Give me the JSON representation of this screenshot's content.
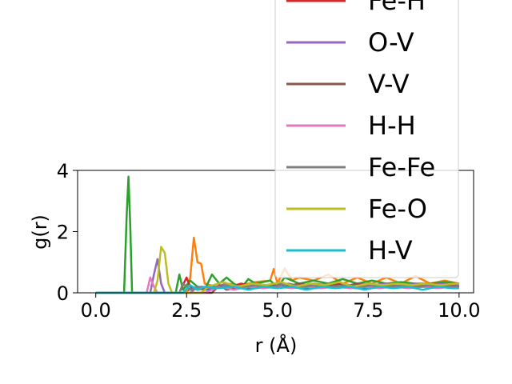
{
  "chart_data": {
    "type": "line",
    "title": "",
    "xlabel": "r (Å)",
    "ylabel": "g(r)",
    "xlim": [
      -0.5,
      10.4
    ],
    "ylim": [
      0,
      4
    ],
    "xticks": [
      "0.0",
      "2.5",
      "5.0",
      "7.5",
      "10.0"
    ],
    "xtick_values": [
      0,
      2.5,
      5,
      7.5,
      10
    ],
    "yticks": [
      "0",
      "2",
      "4"
    ],
    "ytick_values": [
      0,
      2,
      4
    ],
    "grid": false,
    "legend_position": "upper-right",
    "legend_visible": [
      "Fe-H",
      "O-V",
      "V-V",
      "H-H",
      "Fe-Fe",
      "Fe-O",
      "H-V"
    ],
    "series": [
      {
        "name": "",
        "color": "#1f77b4",
        "points": [
          [
            0,
            0
          ],
          [
            2.4,
            0
          ],
          [
            2.7,
            0.18
          ],
          [
            3.0,
            0.1
          ],
          [
            3.6,
            0.2
          ],
          [
            4.2,
            0.15
          ],
          [
            4.8,
            0.18
          ],
          [
            5.4,
            0.2
          ],
          [
            6.0,
            0.15
          ],
          [
            6.6,
            0.2
          ],
          [
            7.2,
            0.15
          ],
          [
            7.8,
            0.2
          ],
          [
            8.4,
            0.18
          ],
          [
            9.0,
            0.2
          ],
          [
            9.6,
            0.18
          ],
          [
            10,
            0.2
          ]
        ]
      },
      {
        "name": "",
        "color": "#ff7f0e",
        "points": [
          [
            0,
            0
          ],
          [
            2.5,
            0
          ],
          [
            2.6,
            0.5
          ],
          [
            2.7,
            1.8
          ],
          [
            2.8,
            1.0
          ],
          [
            2.9,
            0.95
          ],
          [
            3.0,
            0.3
          ],
          [
            3.3,
            0.2
          ],
          [
            3.6,
            0.3
          ],
          [
            4.0,
            0.25
          ],
          [
            4.4,
            0.35
          ],
          [
            4.8,
            0.4
          ],
          [
            4.9,
            0.78
          ],
          [
            5.0,
            0.3
          ],
          [
            5.2,
            0.8
          ],
          [
            5.4,
            0.4
          ],
          [
            5.6,
            0.5
          ],
          [
            6.0,
            0.4
          ],
          [
            6.4,
            0.6
          ],
          [
            6.8,
            0.3
          ],
          [
            7.2,
            0.5
          ],
          [
            7.6,
            0.3
          ],
          [
            8.0,
            0.5
          ],
          [
            8.4,
            0.3
          ],
          [
            8.8,
            0.55
          ],
          [
            9.2,
            0.3
          ],
          [
            9.6,
            0.4
          ],
          [
            10,
            0.3
          ]
        ]
      },
      {
        "name": "",
        "color": "#2ca02c",
        "points": [
          [
            0,
            0
          ],
          [
            0.78,
            0
          ],
          [
            0.85,
            2.5
          ],
          [
            0.9,
            3.8
          ],
          [
            0.95,
            2.2
          ],
          [
            1.0,
            0
          ],
          [
            2.2,
            0
          ],
          [
            2.3,
            0.6
          ],
          [
            2.4,
            0.1
          ],
          [
            2.6,
            0.4
          ],
          [
            2.8,
            0.2
          ],
          [
            3.0,
            0.1
          ],
          [
            3.2,
            0.6
          ],
          [
            3.4,
            0.3
          ],
          [
            3.6,
            0.5
          ],
          [
            3.8,
            0.3
          ],
          [
            4.0,
            0.15
          ],
          [
            4.2,
            0.45
          ],
          [
            4.4,
            0.3
          ],
          [
            4.8,
            0.4
          ],
          [
            5.0,
            0.2
          ],
          [
            5.2,
            0.5
          ],
          [
            5.6,
            0.3
          ],
          [
            6.0,
            0.4
          ],
          [
            6.4,
            0.3
          ],
          [
            6.8,
            0.45
          ],
          [
            7.2,
            0.3
          ],
          [
            7.6,
            0.4
          ],
          [
            8.0,
            0.3
          ],
          [
            8.4,
            0.35
          ],
          [
            8.8,
            0.3
          ],
          [
            9.2,
            0.3
          ],
          [
            9.6,
            0.35
          ],
          [
            10,
            0.3
          ]
        ]
      },
      {
        "name": "Fe-H",
        "color": "#d62728",
        "points": [
          [
            0,
            0
          ],
          [
            2.3,
            0
          ],
          [
            2.5,
            0.5
          ],
          [
            2.6,
            0.2
          ],
          [
            2.8,
            0.1
          ],
          [
            3.2,
            0.2
          ],
          [
            3.6,
            0.15
          ],
          [
            4.0,
            0.3
          ],
          [
            4.4,
            0.2
          ],
          [
            4.8,
            0.25
          ],
          [
            5.2,
            0.2
          ],
          [
            5.6,
            0.3
          ],
          [
            6.0,
            0.2
          ],
          [
            6.4,
            0.25
          ],
          [
            6.8,
            0.3
          ],
          [
            7.2,
            0.2
          ],
          [
            7.6,
            0.25
          ],
          [
            8.0,
            0.3
          ],
          [
            8.4,
            0.2
          ],
          [
            8.8,
            0.25
          ],
          [
            9.2,
            0.3
          ],
          [
            9.6,
            0.25
          ],
          [
            10,
            0.25
          ]
        ]
      },
      {
        "name": "O-V",
        "color": "#9467bd",
        "points": [
          [
            0,
            0
          ],
          [
            1.5,
            0
          ],
          [
            1.6,
            0.6
          ],
          [
            1.7,
            1.1
          ],
          [
            1.8,
            0.3
          ],
          [
            1.9,
            0
          ],
          [
            2.6,
            0
          ],
          [
            2.8,
            0.2
          ],
          [
            3.2,
            0.15
          ],
          [
            3.6,
            0.3
          ],
          [
            4.0,
            0.2
          ],
          [
            4.4,
            0.25
          ],
          [
            4.8,
            0.2
          ],
          [
            5.2,
            0.3
          ],
          [
            5.6,
            0.2
          ],
          [
            6.0,
            0.3
          ],
          [
            6.4,
            0.25
          ],
          [
            6.8,
            0.2
          ],
          [
            7.2,
            0.3
          ],
          [
            7.6,
            0.25
          ],
          [
            8.0,
            0.3
          ],
          [
            8.4,
            0.2
          ],
          [
            8.8,
            0.3
          ],
          [
            9.2,
            0.25
          ],
          [
            9.6,
            0.3
          ],
          [
            10,
            0.25
          ]
        ]
      },
      {
        "name": "V-V",
        "color": "#8c564b",
        "points": [
          [
            0,
            0
          ],
          [
            3.2,
            0
          ],
          [
            3.4,
            0.25
          ],
          [
            3.6,
            0.1
          ],
          [
            4.0,
            0.2
          ],
          [
            4.4,
            0.15
          ],
          [
            4.8,
            0.25
          ],
          [
            5.2,
            0.2
          ],
          [
            5.6,
            0.3
          ],
          [
            6.0,
            0.2
          ],
          [
            6.4,
            0.25
          ],
          [
            6.8,
            0.2
          ],
          [
            7.2,
            0.3
          ],
          [
            7.6,
            0.2
          ],
          [
            8.0,
            0.25
          ],
          [
            8.4,
            0.2
          ],
          [
            8.8,
            0.25
          ],
          [
            9.2,
            0.2
          ],
          [
            9.6,
            0.25
          ],
          [
            10,
            0.2
          ]
        ]
      },
      {
        "name": "H-H",
        "color": "#e377c2",
        "points": [
          [
            0,
            0
          ],
          [
            1.4,
            0
          ],
          [
            1.5,
            0.5
          ],
          [
            1.6,
            0.2
          ],
          [
            1.7,
            0
          ],
          [
            3.0,
            0
          ],
          [
            3.4,
            0.2
          ],
          [
            3.8,
            0.1
          ],
          [
            4.2,
            0.2
          ],
          [
            4.6,
            0.15
          ],
          [
            5.0,
            0.2
          ],
          [
            5.4,
            0.15
          ],
          [
            5.8,
            0.2
          ],
          [
            6.2,
            0.15
          ],
          [
            6.6,
            0.2
          ],
          [
            7.0,
            0.15
          ],
          [
            7.4,
            0.2
          ],
          [
            7.8,
            0.15
          ],
          [
            8.2,
            0.2
          ],
          [
            8.6,
            0.15
          ],
          [
            9.0,
            0.2
          ],
          [
            9.4,
            0.15
          ],
          [
            9.8,
            0.2
          ],
          [
            10,
            0.15
          ]
        ]
      },
      {
        "name": "Fe-Fe",
        "color": "#7f7f7f",
        "points": [
          [
            0,
            0
          ],
          [
            2.3,
            0
          ],
          [
            2.4,
            0.3
          ],
          [
            2.6,
            0.1
          ],
          [
            2.9,
            0.2
          ],
          [
            3.3,
            0.15
          ],
          [
            3.7,
            0.25
          ],
          [
            4.1,
            0.2
          ],
          [
            4.5,
            0.25
          ],
          [
            4.9,
            0.2
          ],
          [
            5.3,
            0.3
          ],
          [
            5.7,
            0.2
          ],
          [
            6.1,
            0.25
          ],
          [
            6.5,
            0.2
          ],
          [
            6.9,
            0.25
          ],
          [
            7.3,
            0.2
          ],
          [
            7.7,
            0.25
          ],
          [
            8.1,
            0.2
          ],
          [
            8.5,
            0.25
          ],
          [
            8.9,
            0.2
          ],
          [
            9.3,
            0.25
          ],
          [
            9.7,
            0.2
          ],
          [
            10,
            0.2
          ]
        ]
      },
      {
        "name": "Fe-O",
        "color": "#bcbd22",
        "points": [
          [
            0,
            0
          ],
          [
            1.6,
            0
          ],
          [
            1.7,
            0.4
          ],
          [
            1.8,
            1.5
          ],
          [
            1.9,
            1.3
          ],
          [
            2.0,
            0.3
          ],
          [
            2.1,
            0
          ],
          [
            2.9,
            0
          ],
          [
            3.1,
            0.2
          ],
          [
            3.5,
            0.35
          ],
          [
            3.9,
            0.2
          ],
          [
            4.3,
            0.3
          ],
          [
            4.7,
            0.25
          ],
          [
            5.1,
            0.35
          ],
          [
            5.5,
            0.2
          ],
          [
            5.9,
            0.3
          ],
          [
            6.3,
            0.25
          ],
          [
            6.7,
            0.35
          ],
          [
            7.1,
            0.2
          ],
          [
            7.5,
            0.3
          ],
          [
            7.9,
            0.25
          ],
          [
            8.3,
            0.3
          ],
          [
            8.7,
            0.25
          ],
          [
            9.1,
            0.3
          ],
          [
            9.5,
            0.25
          ],
          [
            9.9,
            0.3
          ],
          [
            10,
            0.3
          ]
        ]
      },
      {
        "name": "H-V",
        "color": "#17becf",
        "points": [
          [
            0,
            0
          ],
          [
            2.4,
            0
          ],
          [
            2.6,
            0.25
          ],
          [
            2.8,
            0.1
          ],
          [
            3.0,
            0.2
          ],
          [
            3.4,
            0.15
          ],
          [
            3.8,
            0.2
          ],
          [
            4.2,
            0.1
          ],
          [
            4.6,
            0.2
          ],
          [
            5.0,
            0.15
          ],
          [
            5.4,
            0.2
          ],
          [
            5.8,
            0.1
          ],
          [
            6.2,
            0.2
          ],
          [
            6.6,
            0.15
          ],
          [
            7.0,
            0.2
          ],
          [
            7.4,
            0.1
          ],
          [
            7.8,
            0.2
          ],
          [
            8.2,
            0.15
          ],
          [
            8.6,
            0.2
          ],
          [
            9.0,
            0.1
          ],
          [
            9.4,
            0.2
          ],
          [
            9.8,
            0.15
          ],
          [
            10,
            0.15
          ]
        ]
      }
    ]
  }
}
